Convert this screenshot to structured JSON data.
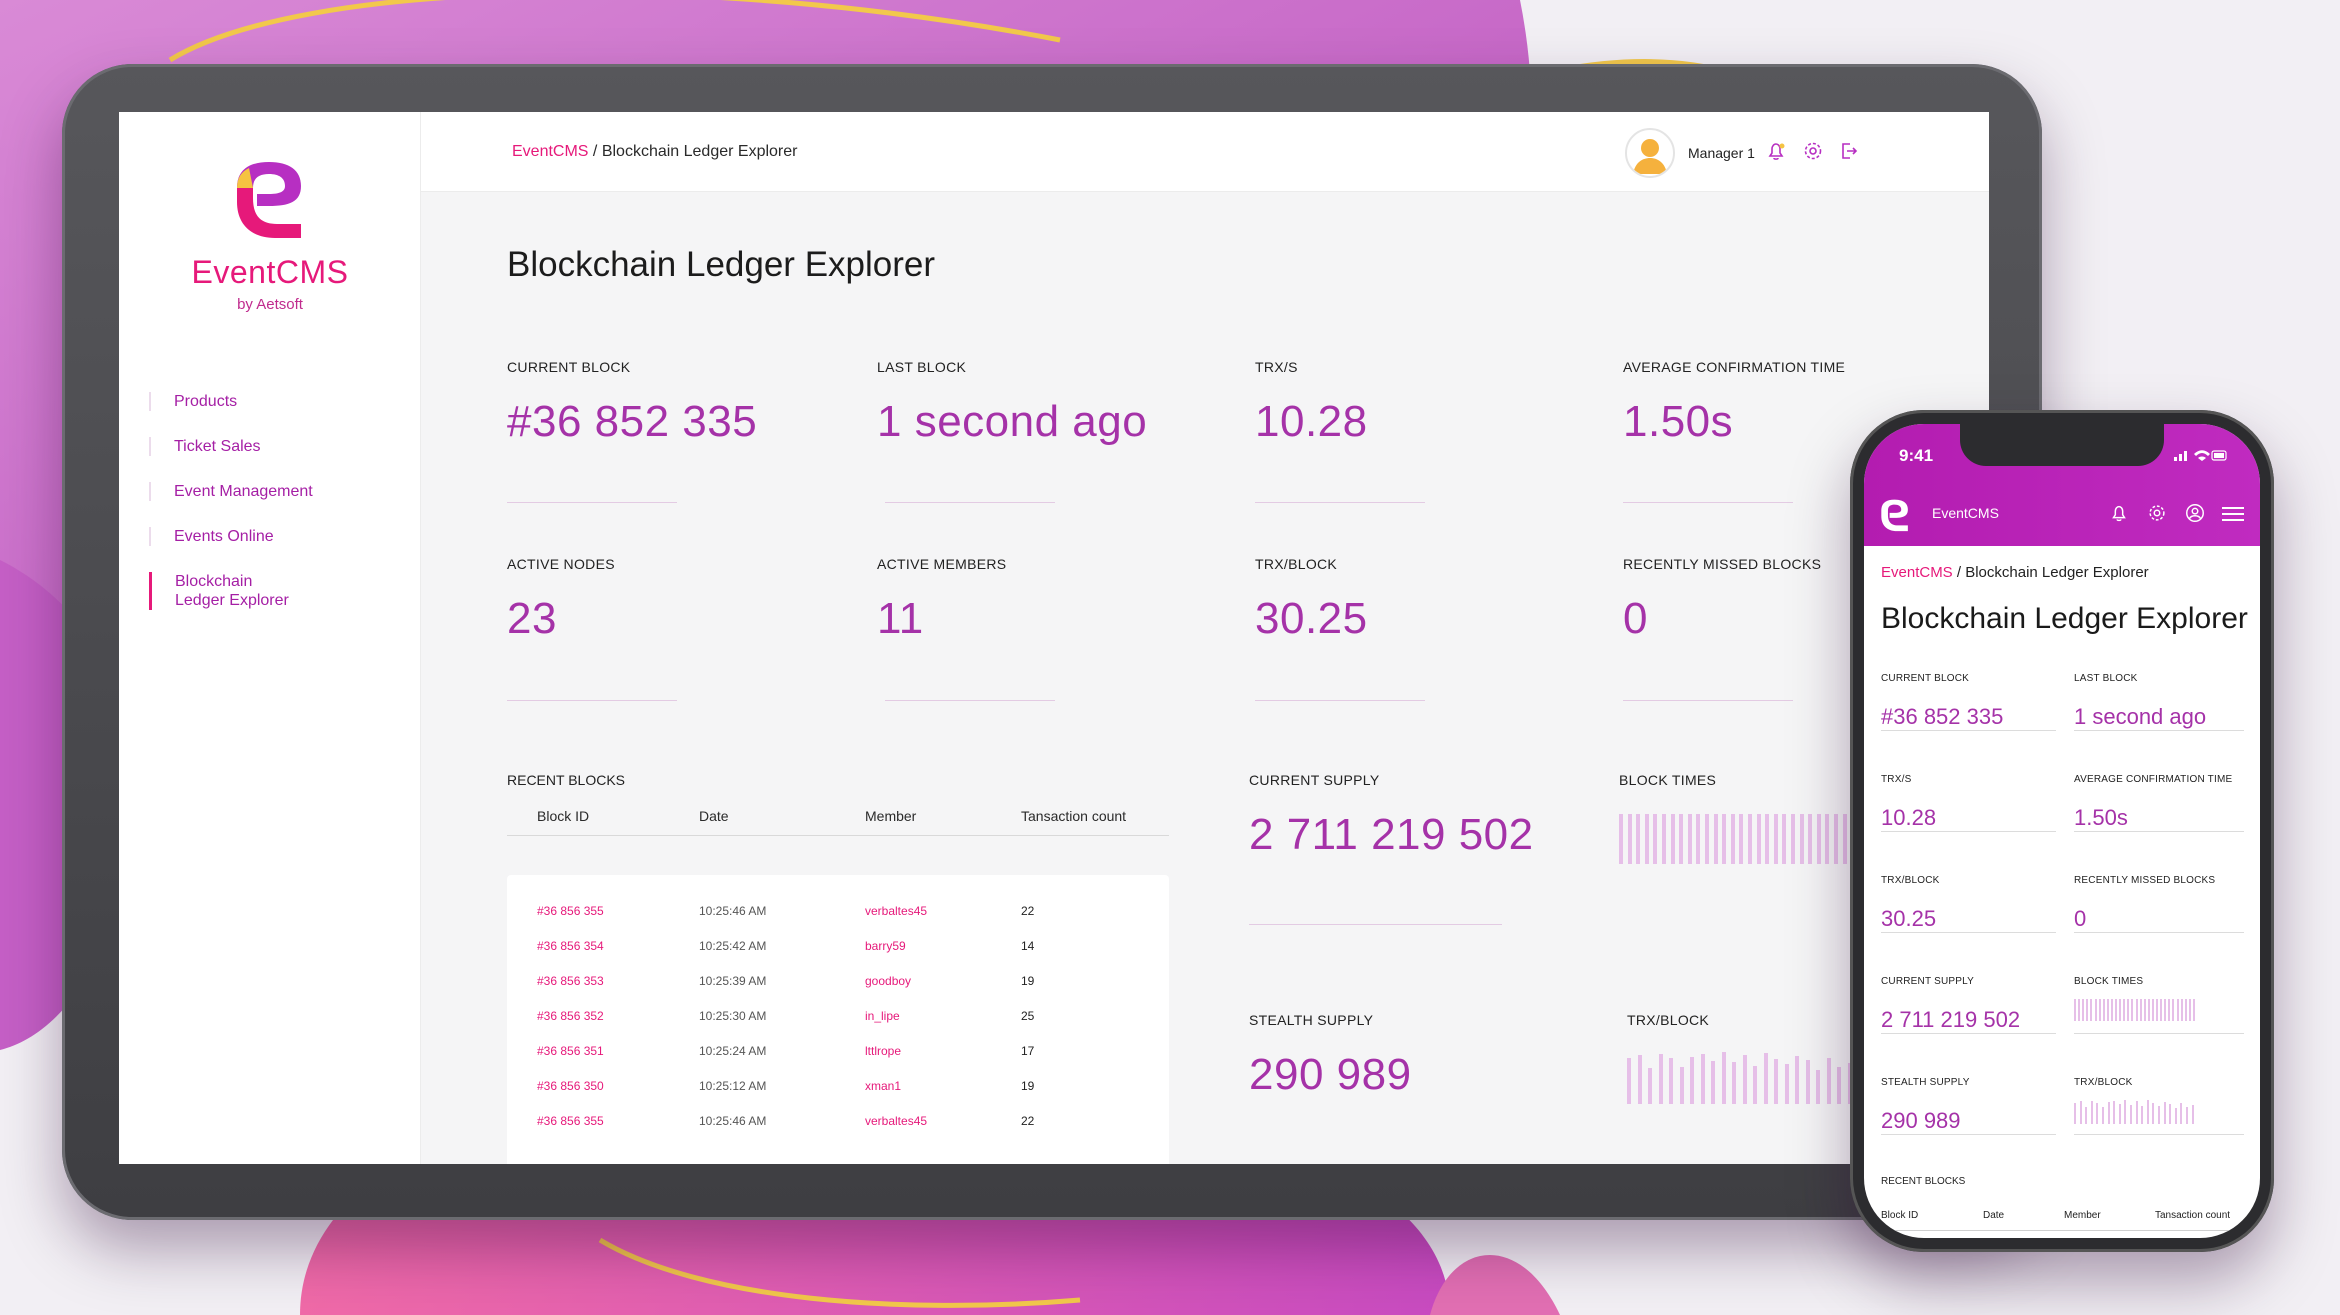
{
  "app": {
    "name": "EventCMS",
    "byline": "by Aetsoft",
    "accent": "#e6197a",
    "purple": "#a532a8"
  },
  "sidebar": {
    "items": [
      {
        "label": "Products"
      },
      {
        "label": "Ticket Sales"
      },
      {
        "label": "Event Management"
      },
      {
        "label": "Events Online"
      },
      {
        "label": "Blockchain Ledger Explorer",
        "active": true
      }
    ]
  },
  "topbar": {
    "crumb_root": "EventCMS",
    "crumb_sep": " / ",
    "crumb_current": "Blockchain Ledger Explorer",
    "user": "Manager 1",
    "icons": [
      "bell-icon",
      "gear-icon",
      "logout-icon"
    ]
  },
  "page": {
    "title": "Blockchain Ledger Explorer",
    "stats": [
      {
        "label": "CURRENT BLOCK",
        "value": "#36 852 335"
      },
      {
        "label": "LAST BLOCK",
        "value": "1 second ago"
      },
      {
        "label": "TRX/S",
        "value": "10.28"
      },
      {
        "label": "AVERAGE CONFIRMATION TIME",
        "value": "1.50s"
      },
      {
        "label": "ACTIVE NODES",
        "value": "23"
      },
      {
        "label": "ACTIVE MEMBERS",
        "value": "11"
      },
      {
        "label": "TRX/BLOCK",
        "value": "30.25"
      },
      {
        "label": "RECENTLY MISSED BLOCKS",
        "value": "0"
      },
      {
        "label": "CURRENT SUPPLY",
        "value": "2 711 219 502"
      },
      {
        "label": "STEALTH SUPPLY",
        "value": "290 989"
      }
    ],
    "mini_charts": [
      {
        "label": "BLOCK TIMES",
        "values": [
          1,
          1,
          1,
          1,
          1,
          1,
          1,
          1,
          1,
          1,
          1,
          1,
          1,
          1,
          1,
          1,
          1,
          1,
          1,
          1,
          1,
          1,
          1,
          1,
          1,
          1,
          1,
          1,
          1,
          1
        ]
      },
      {
        "label": "TRX/BLOCK",
        "values": [
          0.88,
          0.94,
          0.7,
          0.96,
          0.88,
          0.72,
          0.9,
          0.96,
          0.82,
          1.0,
          0.8,
          0.94,
          0.74,
          0.98,
          0.86,
          0.76,
          0.92,
          0.84,
          0.66,
          0.88,
          0.72,
          0.78
        ]
      }
    ],
    "recent_blocks": {
      "label": "RECENT BLOCKS",
      "columns": [
        "Block ID",
        "Date",
        "Member",
        "Tansaction count"
      ],
      "rows": [
        {
          "id": "#36 856 355",
          "date": "10:25:46 AM",
          "member": "verbaltes45",
          "count": "22"
        },
        {
          "id": "#36 856 354",
          "date": "10:25:42 AM",
          "member": "barry59",
          "count": "14"
        },
        {
          "id": "#36 856 353",
          "date": "10:25:39 AM",
          "member": "goodboy",
          "count": "19"
        },
        {
          "id": "#36 856 352",
          "date": "10:25:30 AM",
          "member": "in_lipe",
          "count": "25"
        },
        {
          "id": "#36 856 351",
          "date": "10:25:24 AM",
          "member": "lttlrope",
          "count": "17"
        },
        {
          "id": "#36 856 350",
          "date": "10:25:12 AM",
          "member": "xman1",
          "count": "19"
        },
        {
          "id": "#36 856 355",
          "date": "10:25:46 AM",
          "member": "verbaltes45",
          "count": "22"
        }
      ]
    }
  },
  "phone": {
    "time": "9:41",
    "app_name": "EventCMS",
    "crumb_root": "EventCMS",
    "crumb_sep": " / ",
    "crumb_current": "Blockchain Ledger Explorer",
    "title": "Blockchain Ledger Explorer",
    "stats": [
      {
        "label": "CURRENT BLOCK",
        "value": "#36 852 335"
      },
      {
        "label": "LAST BLOCK",
        "value": "1 second ago"
      },
      {
        "label": "TRX/S",
        "value": "10.28"
      },
      {
        "label": "AVERAGE CONFIRMATION TIME",
        "value": "1.50s"
      },
      {
        "label": "TRX/BLOCK",
        "value": "30.25"
      },
      {
        "label": "RECENTLY MISSED BLOCKS",
        "value": "0"
      },
      {
        "label": "CURRENT SUPPLY",
        "value": "2 711 219 502"
      },
      {
        "label": "BLOCK TIMES",
        "value": ""
      },
      {
        "label": "STEALTH SUPPLY",
        "value": "290 989"
      },
      {
        "label": "TRX/BLOCK",
        "value": ""
      }
    ],
    "recent_label": "RECENT BLOCKS",
    "columns": [
      "Block ID",
      "Date",
      "Member",
      "Tansaction count"
    ]
  }
}
